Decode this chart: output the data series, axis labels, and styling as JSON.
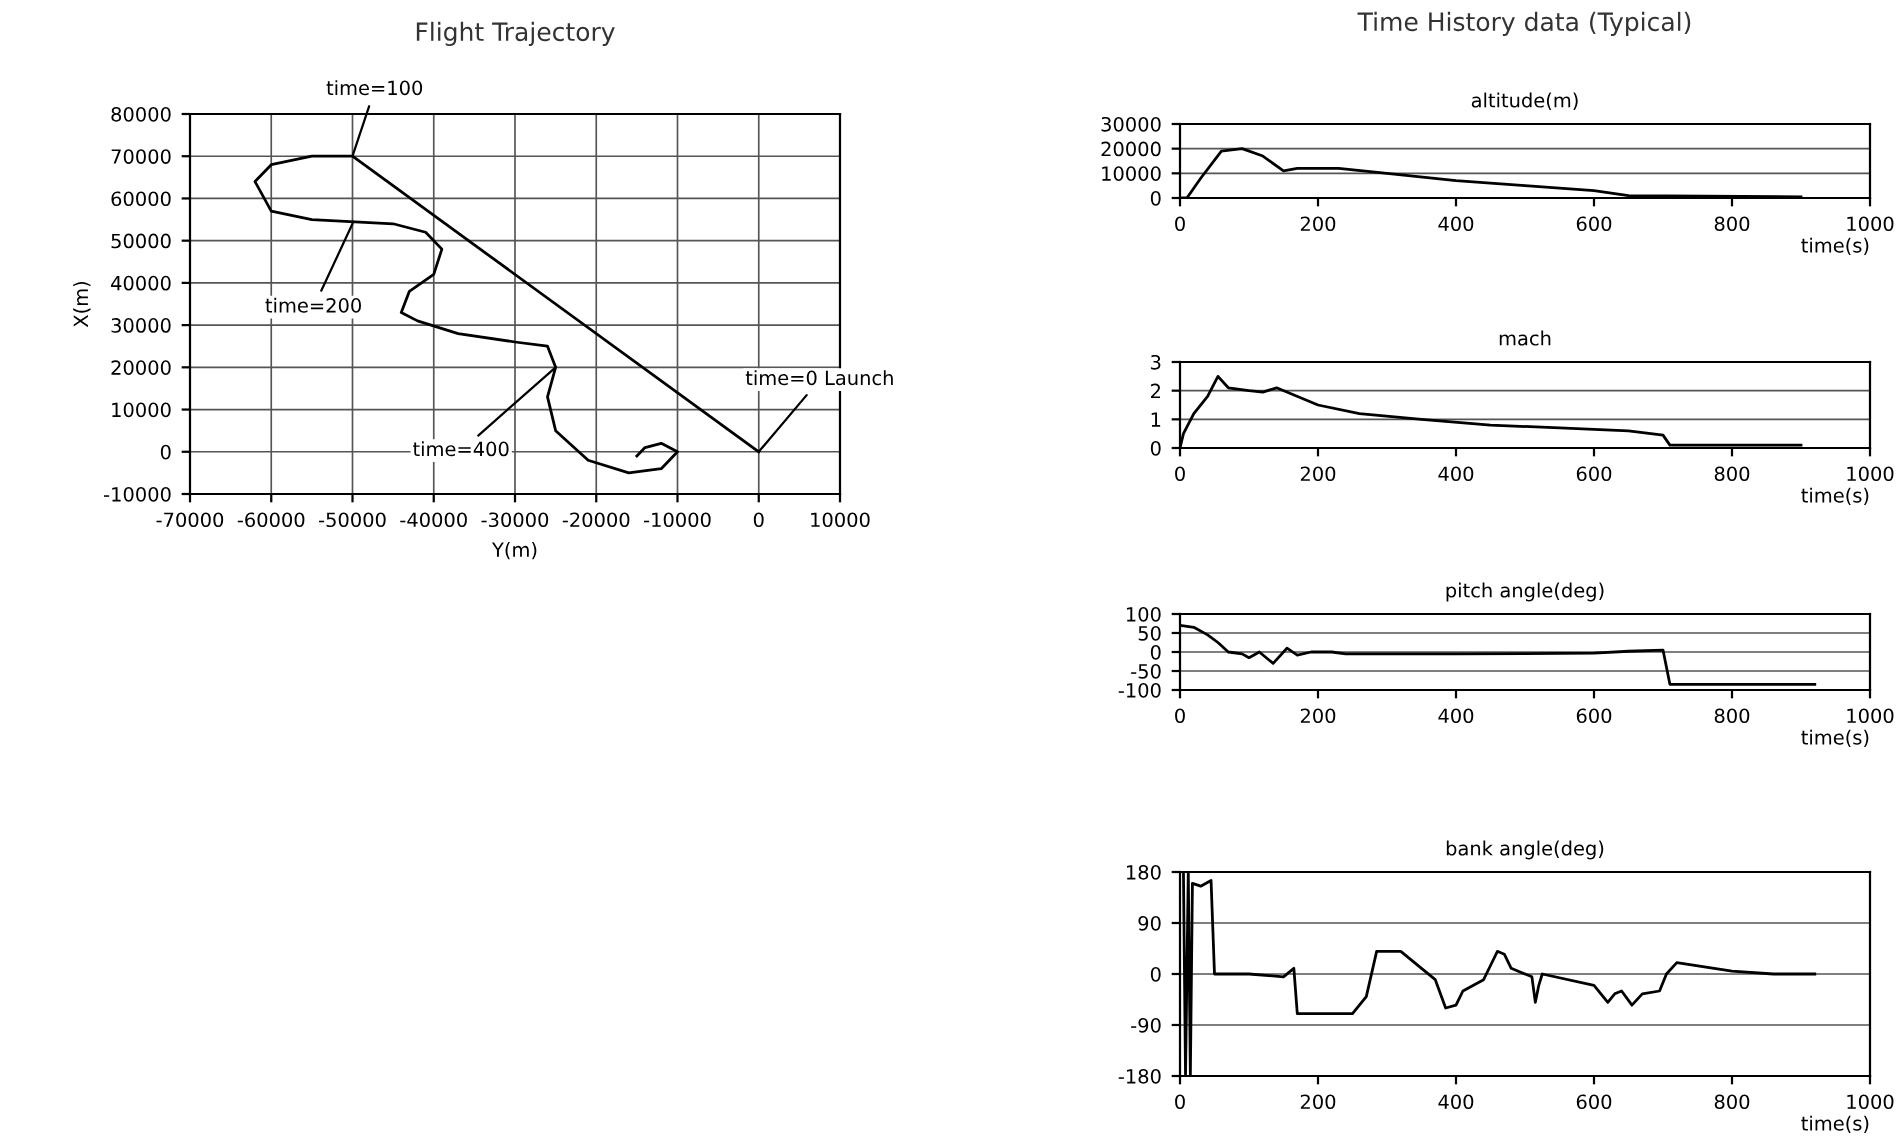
{
  "chart_data": [
    {
      "type": "line",
      "title": "Flight Trajectory",
      "xlabel": "Y(m)",
      "ylabel": "X(m)",
      "grid": true,
      "marker": "none",
      "line_style": "solid",
      "xlim": [
        -70000,
        10000
      ],
      "xticks": [
        -70000,
        -60000,
        -50000,
        -40000,
        -30000,
        -20000,
        -10000,
        0,
        10000
      ],
      "ylim": [
        -10000,
        80000
      ],
      "yticks": [
        -10000,
        0,
        10000,
        20000,
        30000,
        40000,
        50000,
        60000,
        70000,
        80000
      ],
      "series": [
        {
          "color": "#000000",
          "x": [
            0,
            -50000,
            -55000,
            -60000,
            -62000,
            -60000,
            -55000,
            -45000,
            -41000,
            -39000,
            -40000,
            -43000,
            -44000,
            -42000,
            -37000,
            -30000,
            -26000,
            -25000,
            -26000,
            -25000,
            -21000,
            -16000,
            -12000,
            -10000,
            -12000,
            -14000,
            -15000
          ],
          "values": [
            0,
            70000,
            70000,
            68000,
            64000,
            57000,
            55000,
            54000,
            52000,
            48000,
            42000,
            38000,
            33000,
            31000,
            28000,
            26000,
            25000,
            20000,
            13000,
            5000,
            -2000,
            -5000,
            -4000,
            0,
            2000,
            1000,
            -1000
          ]
        }
      ],
      "annotations": [
        {
          "text": "time=100",
          "x": -50000,
          "y": 70000
        },
        {
          "text": "time=200",
          "x": -50000,
          "y": 54000
        },
        {
          "text": "time=400",
          "x": -25000,
          "y": 20000
        },
        {
          "text": "time=0 Launch",
          "x": 0,
          "y": 0
        }
      ]
    },
    {
      "type": "line",
      "title": "Time History data (Typical)",
      "subtitle": "altitude(m)",
      "xlabel": "time(s)",
      "grid": "y",
      "marker": "none",
      "line_style": "solid",
      "xlim": [
        0,
        1000
      ],
      "xticks": [
        0,
        200,
        400,
        600,
        800,
        1000
      ],
      "ylim": [
        0,
        30000
      ],
      "yticks": [
        0,
        10000,
        20000,
        30000
      ],
      "series": [
        {
          "color": "#000000",
          "x": [
            0,
            10,
            30,
            60,
            90,
            120,
            150,
            170,
            230,
            300,
            400,
            500,
            600,
            650,
            900
          ],
          "values": [
            0,
            0,
            8000,
            19000,
            20000,
            17000,
            11000,
            12000,
            12000,
            10000,
            7000,
            5000,
            3000,
            1000,
            500
          ]
        }
      ]
    },
    {
      "type": "line",
      "subtitle": "mach",
      "xlabel": "time(s)",
      "grid": "y",
      "marker": "none",
      "line_style": "solid",
      "xlim": [
        0,
        1000
      ],
      "xticks": [
        0,
        200,
        400,
        600,
        800,
        1000
      ],
      "ylim": [
        0,
        3
      ],
      "yticks": [
        0,
        1,
        2,
        3
      ],
      "series": [
        {
          "color": "#000000",
          "x": [
            0,
            5,
            20,
            40,
            55,
            70,
            100,
            120,
            140,
            160,
            200,
            260,
            350,
            450,
            550,
            650,
            700,
            710,
            900
          ],
          "values": [
            0,
            0.5,
            1.2,
            1.8,
            2.5,
            2.1,
            2.0,
            1.95,
            2.1,
            1.9,
            1.5,
            1.2,
            1.0,
            0.8,
            0.7,
            0.6,
            0.45,
            0.1,
            0.1
          ]
        }
      ]
    },
    {
      "type": "line",
      "subtitle": "pitch angle(deg)",
      "xlabel": "time(s)",
      "grid": "y",
      "marker": "none",
      "line_style": "solid",
      "xlim": [
        0,
        1000
      ],
      "xticks": [
        0,
        200,
        400,
        600,
        800,
        1000
      ],
      "ylim": [
        -100,
        100
      ],
      "yticks": [
        -100,
        -50,
        0,
        50,
        100
      ],
      "series": [
        {
          "color": "#000000",
          "x": [
            0,
            20,
            40,
            55,
            70,
            90,
            100,
            115,
            135,
            155,
            170,
            190,
            220,
            240,
            400,
            600,
            650,
            700,
            710,
            920
          ],
          "values": [
            70,
            65,
            45,
            25,
            0,
            -5,
            -15,
            0,
            -30,
            10,
            -8,
            0,
            0,
            -5,
            -5,
            -3,
            2,
            5,
            -85,
            -85
          ]
        }
      ]
    },
    {
      "type": "line",
      "subtitle": "bank angle(deg)",
      "xlabel": "time(s)",
      "grid": "y",
      "marker": "none",
      "line_style": "solid",
      "xlim": [
        0,
        1000
      ],
      "xticks": [
        0,
        200,
        400,
        600,
        800,
        1000
      ],
      "ylim": [
        -180,
        180
      ],
      "yticks": [
        -180,
        -90,
        0,
        90,
        180
      ],
      "series": [
        {
          "color": "#000000",
          "x": [
            5,
            8,
            12,
            15,
            18,
            30,
            45,
            50,
            100,
            150,
            165,
            170,
            250,
            270,
            285,
            320,
            350,
            370,
            385,
            400,
            410,
            440,
            450,
            460,
            470,
            480,
            510,
            515,
            520,
            525,
            600,
            620,
            630,
            640,
            655,
            670,
            695,
            705,
            720,
            800,
            860,
            920
          ],
          "values": [
            180,
            -180,
            180,
            -180,
            160,
            155,
            165,
            0,
            0,
            -5,
            10,
            -70,
            -70,
            -40,
            40,
            40,
            10,
            -10,
            -60,
            -55,
            -30,
            -10,
            15,
            40,
            35,
            10,
            -5,
            -50,
            -20,
            0,
            -20,
            -50,
            -35,
            -30,
            -55,
            -35,
            -30,
            0,
            20,
            5,
            0,
            0
          ]
        }
      ]
    }
  ]
}
